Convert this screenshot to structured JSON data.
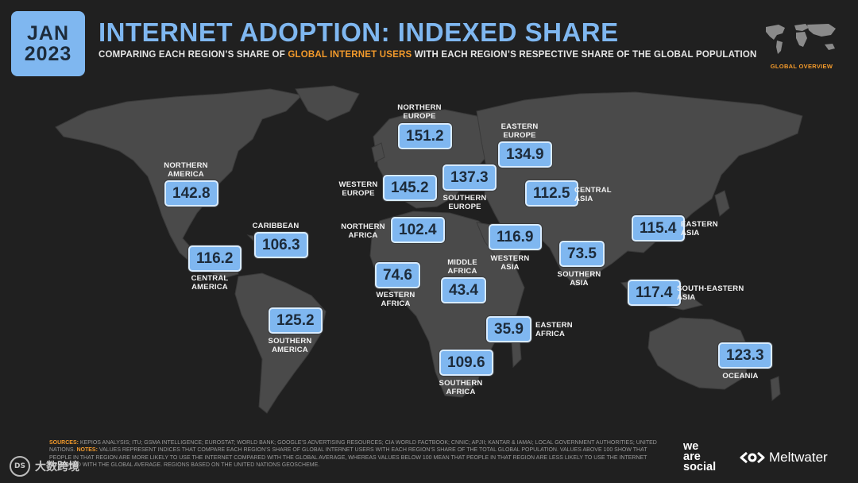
{
  "header": {
    "date_month": "JAN",
    "date_year": "2023",
    "title": "INTERNET ADOPTION: INDEXED SHARE",
    "subtitle_pre": "COMPARING EACH REGION’S SHARE OF ",
    "subtitle_highlight": "GLOBAL INTERNET USERS",
    "subtitle_post": " WITH EACH REGION’S RESPECTIVE SHARE OF THE GLOBAL POPULATION",
    "section_label": "GLOBAL OVERVIEW"
  },
  "regions": [
    {
      "id": "northern-america",
      "label": "NORTHERN\nAMERICA",
      "value": "142.8"
    },
    {
      "id": "caribbean",
      "label": "CARIBBEAN",
      "value": "106.3"
    },
    {
      "id": "central-america",
      "label": "CENTRAL\nAMERICA",
      "value": "116.2"
    },
    {
      "id": "southern-america",
      "label": "SOUTHERN\nAMERICA",
      "value": "125.2"
    },
    {
      "id": "northern-europe",
      "label": "NORTHERN\nEUROPE",
      "value": "151.2"
    },
    {
      "id": "western-europe",
      "label": "WESTERN\nEUROPE",
      "value": "145.2"
    },
    {
      "id": "southern-europe",
      "label": "SOUTHERN\nEUROPE",
      "value": "137.3"
    },
    {
      "id": "eastern-europe",
      "label": "EASTERN\nEUROPE",
      "value": "134.9"
    },
    {
      "id": "central-asia",
      "label": "CENTRAL\nASIA",
      "value": "112.5"
    },
    {
      "id": "northern-africa",
      "label": "NORTHERN\nAFRICA",
      "value": "102.4"
    },
    {
      "id": "western-asia",
      "label": "WESTERN\nASIA",
      "value": "116.9"
    },
    {
      "id": "southern-asia",
      "label": "SOUTHERN\nASIA",
      "value": "73.5"
    },
    {
      "id": "eastern-asia",
      "label": "EASTERN\nASIA",
      "value": "115.4"
    },
    {
      "id": "south-eastern-asia",
      "label": "SOUTH-EASTERN\nASIA",
      "value": "117.4"
    },
    {
      "id": "western-africa",
      "label": "WESTERN\nAFRICA",
      "value": "74.6"
    },
    {
      "id": "middle-africa",
      "label": "MIDDLE\nAFRICA",
      "value": "43.4"
    },
    {
      "id": "eastern-africa",
      "label": "EASTERN\nAFRICA",
      "value": "35.9"
    },
    {
      "id": "southern-africa",
      "label": "SOUTHERN\nAFRICA",
      "value": "109.6"
    },
    {
      "id": "oceania",
      "label": "OCEANIA",
      "value": "123.3"
    }
  ],
  "footer": {
    "sources_key": "SOURCES:",
    "sources_text": " KEPIOS ANALYSIS; ITU; GSMA INTELLIGENCE; EUROSTAT; WORLD BANK; GOOGLE’S ADVERTISING RESOURCES; CIA WORLD FACTBOOK; CNNIC; APJII; KANTAR & IAMAI; LOCAL GOVERNMENT AUTHORITIES; UNITED NATIONS. ",
    "notes_key": "NOTES:",
    "notes_text": " VALUES REPRESENT INDICES THAT COMPARE EACH REGION’S SHARE OF GLOBAL INTERNET USERS WITH EACH REGION’S SHARE OF THE TOTAL GLOBAL POPULATION. VALUES ABOVE 100 SHOW THAT PEOPLE IN THAT REGION ARE MORE LIKELY TO USE THE INTERNET COMPARED WITH THE GLOBAL AVERAGE, WHEREAS VALUES BELOW 100 MEAN THAT PEOPLE IN THAT REGION ARE LESS LIKELY TO USE THE INTERNET COMPARED WITH THE GLOBAL AVERAGE. REGIONS BASED ON THE UNITED NATIONS GEOSCHEME."
  },
  "branding": {
    "wearesocial_1": "we",
    "wearesocial_2": "are",
    "wearesocial_3": "social",
    "meltwater": "Meltwater",
    "watermark": "大数跨境",
    "watermark_badge": "DS"
  },
  "colors": {
    "background": "#202020",
    "land": "#4a4a4a",
    "accent_blue": "#7fb7f0",
    "highlight_orange": "#f39a2b"
  }
}
